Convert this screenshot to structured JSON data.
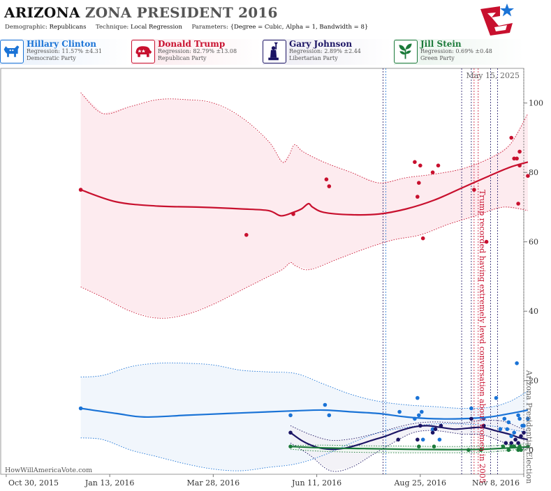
{
  "header": {
    "state": "ARIZONA",
    "title_rest": "ZONA PRESIDENT 2016",
    "demographic_label": "Demographic:",
    "demographic": "Republicans",
    "technique_label": "Technique:",
    "technique": "Local Regression",
    "parameters_label": "Parameters:",
    "parameters": "{Degree = Cubic, Alpha = 1, Bandwidth = 8}"
  },
  "candidates": [
    {
      "name": "Hillary Clinton",
      "regression": "Regression: 11.57% ±4.31",
      "party": "Democratic Party",
      "color": "#1a73d6",
      "icon": "donkey-icon"
    },
    {
      "name": "Donald Trump",
      "regression": "Regression: 82.79% ±13.08",
      "party": "Republican Party",
      "color": "#c8102e",
      "icon": "elephant-icon"
    },
    {
      "name": "Gary Johnson",
      "regression": "Regression: 2.89% ±2.44",
      "party": "Libertarian Party",
      "color": "#1b1464",
      "icon": "statue-of-liberty-icon"
    },
    {
      "name": "Jill Stein",
      "regression": "Regression: 0.69% ±0.48",
      "party": "Green Party",
      "color": "#1b7a3a",
      "icon": "plant-icon"
    }
  ],
  "credit": "HowWillAmericaVote.com",
  "chart_data": {
    "type": "line",
    "current_date_label": "May 15, 2025",
    "ylim": [
      -7,
      110
    ],
    "yticks": [
      0,
      20,
      40,
      60,
      80,
      100
    ],
    "x_range_days": [
      -4,
      375
    ],
    "x_origin_label": "Oct 30, 2015",
    "xticks": [
      {
        "day": 0,
        "label": "Oct 30, 2015"
      },
      {
        "day": 75,
        "label": "Jan 13, 2016"
      },
      {
        "day": 150,
        "label": "Mar 28, 2016"
      },
      {
        "day": 225,
        "label": "Jun 11, 2016"
      },
      {
        "day": 300,
        "label": "Aug 25, 2016"
      },
      {
        "day": 375,
        "label": "Nov 8, 2016"
      }
    ],
    "annotations": [
      {
        "day": 341,
        "label": "Trump recorded having extremely lewd conversation about women in 2005",
        "color": "#c8102e"
      },
      {
        "day": 375,
        "label": "Arizona Presidential Election",
        "color": "#666666"
      }
    ],
    "event_lines": [
      {
        "day": 273,
        "color": "#1b1464"
      },
      {
        "day": 275,
        "color": "#1a73d6"
      },
      {
        "day": 330,
        "color": "#1b1464"
      },
      {
        "day": 337,
        "color": "#1b1464"
      },
      {
        "day": 339,
        "color": "#c8102e"
      },
      {
        "day": 342,
        "color": "#c8102e"
      },
      {
        "day": 351,
        "color": "#1b1464"
      },
      {
        "day": 356,
        "color": "#1b1464"
      },
      {
        "day": 375,
        "color": "#666666"
      }
    ],
    "series": [
      {
        "name": "Donald Trump",
        "color": "#c8102e",
        "fill": "#fde8ec",
        "points": [
          [
            54,
            75
          ],
          [
            174,
            62
          ],
          [
            208,
            68
          ],
          [
            232,
            78
          ],
          [
            234,
            76
          ],
          [
            296,
            83
          ],
          [
            298,
            73
          ],
          [
            299,
            77
          ],
          [
            300,
            82
          ],
          [
            302,
            61
          ],
          [
            309,
            80
          ],
          [
            313,
            82
          ],
          [
            339,
            75
          ],
          [
            348,
            60
          ],
          [
            366,
            90
          ],
          [
            368,
            84
          ],
          [
            370,
            84
          ],
          [
            371,
            71
          ],
          [
            372,
            86
          ],
          [
            372,
            82
          ],
          [
            378,
            79
          ]
        ],
        "trend": [
          [
            54,
            75
          ],
          [
            80,
            71.5
          ],
          [
            110,
            70.3
          ],
          [
            140,
            70
          ],
          [
            170,
            69.5
          ],
          [
            190,
            69
          ],
          [
            199,
            67.5
          ],
          [
            208,
            68.5
          ],
          [
            214,
            69.5
          ],
          [
            219,
            71
          ],
          [
            222,
            70
          ],
          [
            230,
            68.5
          ],
          [
            250,
            67.8
          ],
          [
            270,
            68
          ],
          [
            290,
            69.5
          ],
          [
            310,
            72
          ],
          [
            330,
            75.5
          ],
          [
            350,
            79
          ],
          [
            365,
            81.5
          ],
          [
            378,
            83
          ]
        ],
        "upper": [
          [
            54,
            103
          ],
          [
            70,
            97
          ],
          [
            90,
            99
          ],
          [
            110,
            101
          ],
          [
            130,
            101
          ],
          [
            150,
            100
          ],
          [
            170,
            96
          ],
          [
            190,
            89
          ],
          [
            200,
            83
          ],
          [
            205,
            85
          ],
          [
            209,
            88
          ],
          [
            215,
            86
          ],
          [
            230,
            83
          ],
          [
            250,
            80
          ],
          [
            270,
            77
          ],
          [
            290,
            78.5
          ],
          [
            310,
            79.5
          ],
          [
            330,
            81
          ],
          [
            350,
            84
          ],
          [
            365,
            88
          ],
          [
            378,
            97
          ]
        ],
        "lower": [
          [
            54,
            47
          ],
          [
            70,
            44
          ],
          [
            90,
            40
          ],
          [
            110,
            38
          ],
          [
            130,
            39
          ],
          [
            150,
            42
          ],
          [
            170,
            46
          ],
          [
            190,
            50
          ],
          [
            200,
            52
          ],
          [
            206,
            54
          ],
          [
            210,
            53
          ],
          [
            220,
            52
          ],
          [
            240,
            55
          ],
          [
            260,
            58
          ],
          [
            280,
            60.5
          ],
          [
            300,
            62
          ],
          [
            320,
            65
          ],
          [
            340,
            67.5
          ],
          [
            360,
            70
          ],
          [
            378,
            69
          ]
        ]
      },
      {
        "name": "Hillary Clinton",
        "color": "#1a73d6",
        "fill": "#eef4fb",
        "points": [
          [
            54,
            12
          ],
          [
            206,
            10
          ],
          [
            231,
            13
          ],
          [
            234,
            10
          ],
          [
            285,
            11
          ],
          [
            296,
            9
          ],
          [
            298,
            15
          ],
          [
            299,
            10
          ],
          [
            301,
            11
          ],
          [
            302,
            3
          ],
          [
            309,
            6
          ],
          [
            314,
            3
          ],
          [
            337,
            12
          ],
          [
            346,
            9
          ],
          [
            355,
            15
          ],
          [
            358,
            6
          ],
          [
            361,
            9
          ],
          [
            363,
            6
          ],
          [
            364,
            8
          ],
          [
            366,
            4
          ],
          [
            368,
            5
          ],
          [
            370,
            25
          ],
          [
            371,
            10
          ],
          [
            372,
            9
          ],
          [
            374,
            7
          ],
          [
            375,
            7
          ],
          [
            378,
            9
          ]
        ],
        "trend": [
          [
            54,
            12
          ],
          [
            80,
            10.5
          ],
          [
            100,
            9.5
          ],
          [
            130,
            10
          ],
          [
            160,
            10.5
          ],
          [
            190,
            11
          ],
          [
            210,
            11.3
          ],
          [
            230,
            11.5
          ],
          [
            250,
            11
          ],
          [
            270,
            10.5
          ],
          [
            290,
            9.5
          ],
          [
            310,
            9
          ],
          [
            330,
            9
          ],
          [
            350,
            9.5
          ],
          [
            365,
            10.5
          ],
          [
            378,
            11.5
          ]
        ],
        "upper": [
          [
            54,
            21
          ],
          [
            70,
            21.5
          ],
          [
            90,
            24
          ],
          [
            110,
            25
          ],
          [
            130,
            25
          ],
          [
            150,
            24.5
          ],
          [
            170,
            23
          ],
          [
            190,
            22.5
          ],
          [
            210,
            22
          ],
          [
            230,
            19
          ],
          [
            250,
            16
          ],
          [
            270,
            14
          ],
          [
            290,
            13
          ],
          [
            310,
            12.5
          ],
          [
            330,
            12
          ],
          [
            350,
            12.3
          ],
          [
            365,
            14
          ],
          [
            378,
            17
          ]
        ],
        "lower": [
          [
            54,
            3.5
          ],
          [
            70,
            3
          ],
          [
            90,
            0
          ],
          [
            110,
            -2
          ],
          [
            130,
            -4
          ],
          [
            150,
            -5.5
          ],
          [
            170,
            -6
          ],
          [
            190,
            -5
          ],
          [
            210,
            -4
          ],
          [
            230,
            -1.5
          ],
          [
            250,
            2
          ],
          [
            270,
            5
          ],
          [
            290,
            6.5
          ],
          [
            310,
            7.5
          ],
          [
            330,
            7.5
          ],
          [
            350,
            7
          ],
          [
            365,
            6
          ],
          [
            378,
            5
          ]
        ]
      },
      {
        "name": "Gary Johnson",
        "color": "#1b1464",
        "fill": "#f1f0f6",
        "points": [
          [
            206,
            5
          ],
          [
            284,
            3
          ],
          [
            298,
            3
          ],
          [
            300,
            7
          ],
          [
            309,
            5
          ],
          [
            311,
            6
          ],
          [
            315,
            7
          ],
          [
            337,
            9
          ],
          [
            346,
            7
          ],
          [
            362,
            2
          ],
          [
            366,
            2
          ],
          [
            369,
            3
          ],
          [
            371,
            2
          ],
          [
            373,
            4
          ],
          [
            375,
            5
          ]
        ],
        "trend": [
          [
            206,
            5
          ],
          [
            215,
            2.5
          ],
          [
            225,
            0.8
          ],
          [
            235,
            0.2
          ],
          [
            245,
            0.5
          ],
          [
            255,
            1.5
          ],
          [
            265,
            2.8
          ],
          [
            275,
            4
          ],
          [
            285,
            5.5
          ],
          [
            295,
            6.6
          ],
          [
            305,
            7
          ],
          [
            315,
            6.5
          ],
          [
            325,
            6
          ],
          [
            335,
            6.3
          ],
          [
            345,
            6.5
          ],
          [
            355,
            5.5
          ],
          [
            365,
            4.5
          ],
          [
            372,
            3.5
          ],
          [
            378,
            3
          ]
        ],
        "upper": [
          [
            206,
            7
          ],
          [
            220,
            4.5
          ],
          [
            235,
            2.8
          ],
          [
            250,
            3.2
          ],
          [
            265,
            4.5
          ],
          [
            280,
            6.2
          ],
          [
            295,
            7.6
          ],
          [
            310,
            8.1
          ],
          [
            330,
            7.8
          ],
          [
            345,
            8.5
          ],
          [
            360,
            8.3
          ],
          [
            372,
            6.4
          ],
          [
            378,
            5.5
          ]
        ],
        "lower": [
          [
            206,
            2
          ],
          [
            220,
            -1.5
          ],
          [
            235,
            -6
          ],
          [
            250,
            -5
          ],
          [
            265,
            -1.5
          ],
          [
            280,
            2
          ],
          [
            295,
            5
          ],
          [
            310,
            5.6
          ],
          [
            330,
            4.6
          ],
          [
            345,
            4.4
          ],
          [
            360,
            2.2
          ],
          [
            372,
            0.5
          ],
          [
            378,
            0.8
          ]
        ]
      },
      {
        "name": "Jill Stein",
        "color": "#1b7a3a",
        "fill": "#eef6f0",
        "points": [
          [
            206,
            1
          ],
          [
            299,
            1
          ],
          [
            310,
            1
          ],
          [
            335,
            0
          ],
          [
            344,
            0
          ],
          [
            360,
            1
          ],
          [
            364,
            0
          ],
          [
            366,
            1
          ],
          [
            368,
            1
          ],
          [
            371,
            0
          ],
          [
            372,
            1
          ],
          [
            373,
            0
          ],
          [
            378,
            1
          ]
        ],
        "trend": [
          [
            206,
            1
          ],
          [
            230,
            0.6
          ],
          [
            260,
            0.4
          ],
          [
            290,
            0.2
          ],
          [
            320,
            0.1
          ],
          [
            345,
            0.2
          ],
          [
            360,
            0.5
          ],
          [
            370,
            0.7
          ],
          [
            378,
            0.9
          ]
        ],
        "upper": [
          [
            206,
            1.3
          ],
          [
            230,
            1.4
          ],
          [
            260,
            1.2
          ],
          [
            290,
            1.1
          ],
          [
            320,
            1
          ],
          [
            345,
            1.1
          ],
          [
            360,
            1.4
          ],
          [
            370,
            1.6
          ],
          [
            378,
            1.7
          ]
        ],
        "lower": [
          [
            206,
            0.2
          ],
          [
            230,
            -0.4
          ],
          [
            260,
            -0.7
          ],
          [
            290,
            -0.8
          ],
          [
            320,
            -0.8
          ],
          [
            345,
            -0.7
          ],
          [
            360,
            -0.3
          ],
          [
            370,
            0.1
          ],
          [
            378,
            0.2
          ]
        ]
      }
    ]
  }
}
